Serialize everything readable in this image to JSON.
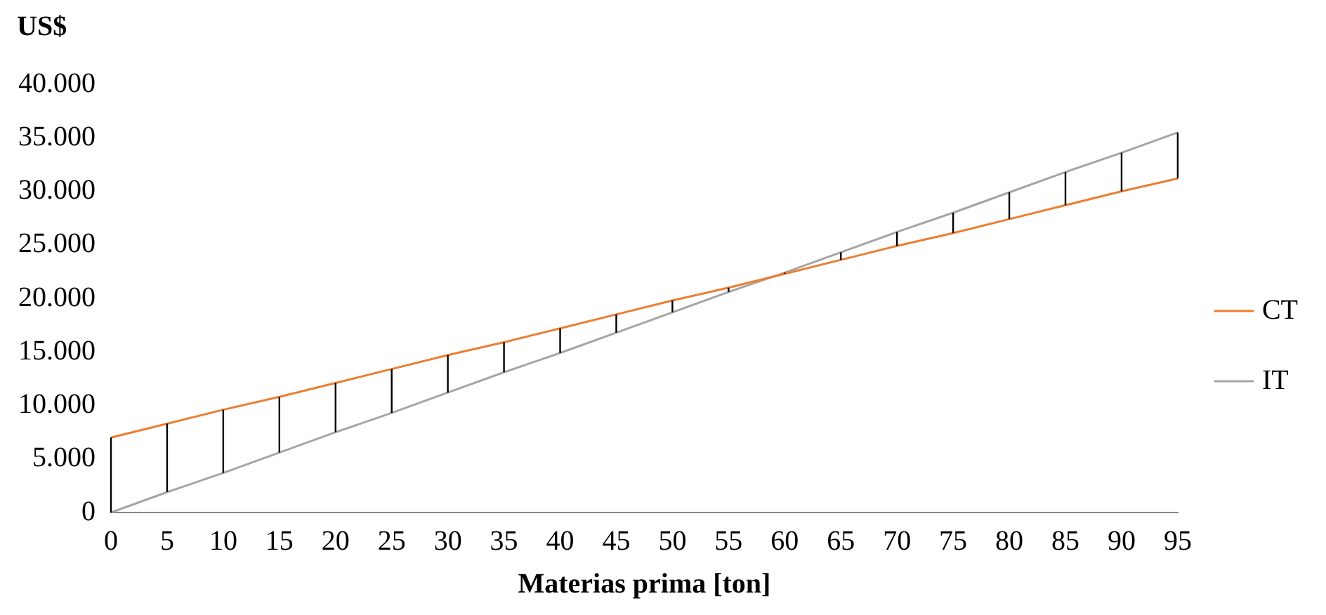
{
  "chart_data": {
    "type": "line",
    "ylabel": "US$",
    "xlabel": "Materias prima [ton]",
    "categories": [
      "0",
      "5",
      "10",
      "15",
      "20",
      "25",
      "30",
      "35",
      "40",
      "45",
      "50",
      "55",
      "60",
      "65",
      "70",
      "75",
      "80",
      "85",
      "90",
      "95"
    ],
    "series": [
      {
        "name": "CT",
        "color": "#ed7d31",
        "values": [
          7000,
          8300,
          9600,
          10800,
          12100,
          13400,
          14700,
          15900,
          17200,
          18500,
          19800,
          21000,
          22300,
          23600,
          24900,
          26100,
          27400,
          28700,
          30000,
          31200
        ],
        "errors": [
          [
            0,
            7000
          ],
          [
            1900,
            8300
          ],
          [
            3700,
            9600
          ],
          [
            5600,
            10800
          ],
          [
            7500,
            12100
          ],
          [
            9300,
            13400
          ],
          [
            11200,
            14700
          ],
          [
            13100,
            15900
          ],
          [
            14900,
            17200
          ],
          [
            16800,
            18500
          ],
          [
            18700,
            19800
          ],
          [
            20600,
            21000
          ],
          [
            22300,
            22400
          ],
          [
            23600,
            24300
          ],
          [
            24900,
            26200
          ],
          [
            26100,
            28000
          ],
          [
            27400,
            29900
          ],
          [
            28700,
            31800
          ],
          [
            30000,
            33600
          ],
          [
            31200,
            35500
          ]
        ]
      },
      {
        "name": "IT",
        "color": "#a5a5a5",
        "values": [
          0,
          1900,
          3700,
          5600,
          7500,
          9300,
          11200,
          13100,
          14900,
          16800,
          18700,
          20600,
          22400,
          24300,
          26200,
          28000,
          29900,
          31800,
          33600,
          35500
        ]
      }
    ],
    "ylim": [
      0,
      40000
    ],
    "yticks": [
      {
        "value": 0,
        "label": "0"
      },
      {
        "value": 5000,
        "label": "5.000"
      },
      {
        "value": 10000,
        "label": "10.000"
      },
      {
        "value": 15000,
        "label": "15.000"
      },
      {
        "value": 20000,
        "label": "20.000"
      },
      {
        "value": 25000,
        "label": "25.000"
      },
      {
        "value": 30000,
        "label": "30.000"
      },
      {
        "value": 35000,
        "label": "35.000"
      },
      {
        "value": 40000,
        "label": "40.000"
      }
    ],
    "grid": false,
    "legend": "right",
    "marker": "none",
    "line_style": "solid"
  }
}
